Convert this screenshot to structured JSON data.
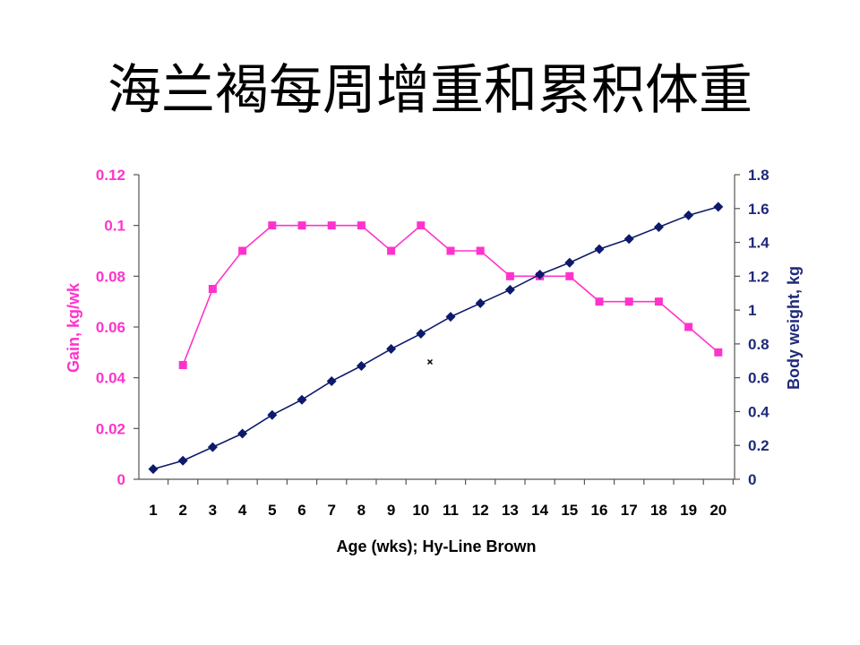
{
  "slide": {
    "title": "海兰褐每周增重和累积体重"
  },
  "chart_data": {
    "type": "line",
    "xlabel": "Age (wks); Hy-Line Brown",
    "x": [
      1,
      2,
      3,
      4,
      5,
      6,
      7,
      8,
      9,
      10,
      11,
      12,
      13,
      14,
      15,
      16,
      17,
      18,
      19,
      20
    ],
    "x_tick_labels": [
      "1",
      "2",
      "3",
      "4",
      "5",
      "6",
      "7",
      "8",
      "9",
      "10",
      "11",
      "12",
      "13",
      "14",
      "15",
      "16",
      "17",
      "18",
      "19",
      "20"
    ],
    "left_axis": {
      "label": "Gain, kg/wk",
      "ylim": [
        0,
        0.12
      ],
      "ticks": [
        "0",
        "0.02",
        "0.04",
        "0.06",
        "0.08",
        "0.1",
        "0.12"
      ],
      "tick_values": [
        0,
        0.02,
        0.04,
        0.06,
        0.08,
        0.1,
        0.12
      ],
      "color": "#ff33cc"
    },
    "right_axis": {
      "label": "Body weight, kg",
      "ylim": [
        0,
        1.8
      ],
      "ticks": [
        "0",
        "0.2",
        "0.4",
        "0.6",
        "0.8",
        "1",
        "1.2",
        "1.4",
        "1.6",
        "1.8"
      ],
      "tick_values": [
        0,
        0.2,
        0.4,
        0.6,
        0.8,
        1.0,
        1.2,
        1.4,
        1.6,
        1.8
      ],
      "color": "#1f2a7a"
    },
    "series": [
      {
        "axis": "left",
        "marker": "square",
        "color": "#ff33cc",
        "x": [
          2,
          3,
          4,
          5,
          6,
          7,
          8,
          9,
          10,
          11,
          12,
          13,
          14,
          15,
          16,
          17,
          18,
          19,
          20
        ],
        "values": [
          0.045,
          0.075,
          0.09,
          0.1,
          0.1,
          0.1,
          0.1,
          0.09,
          0.1,
          0.09,
          0.09,
          0.08,
          0.08,
          0.08,
          0.07,
          0.07,
          0.07,
          0.06,
          0.05
        ]
      },
      {
        "axis": "right",
        "marker": "diamond",
        "color": "#0d1a6b",
        "x": [
          1,
          2,
          3,
          4,
          5,
          6,
          7,
          8,
          9,
          10,
          11,
          12,
          13,
          14,
          15,
          16,
          17,
          18,
          19,
          20
        ],
        "values": [
          0.06,
          0.11,
          0.19,
          0.27,
          0.38,
          0.47,
          0.58,
          0.67,
          0.77,
          0.86,
          0.96,
          1.04,
          1.12,
          1.21,
          1.28,
          1.36,
          1.42,
          1.49,
          1.56,
          1.61
        ]
      }
    ],
    "grid": false,
    "legend": "none"
  }
}
